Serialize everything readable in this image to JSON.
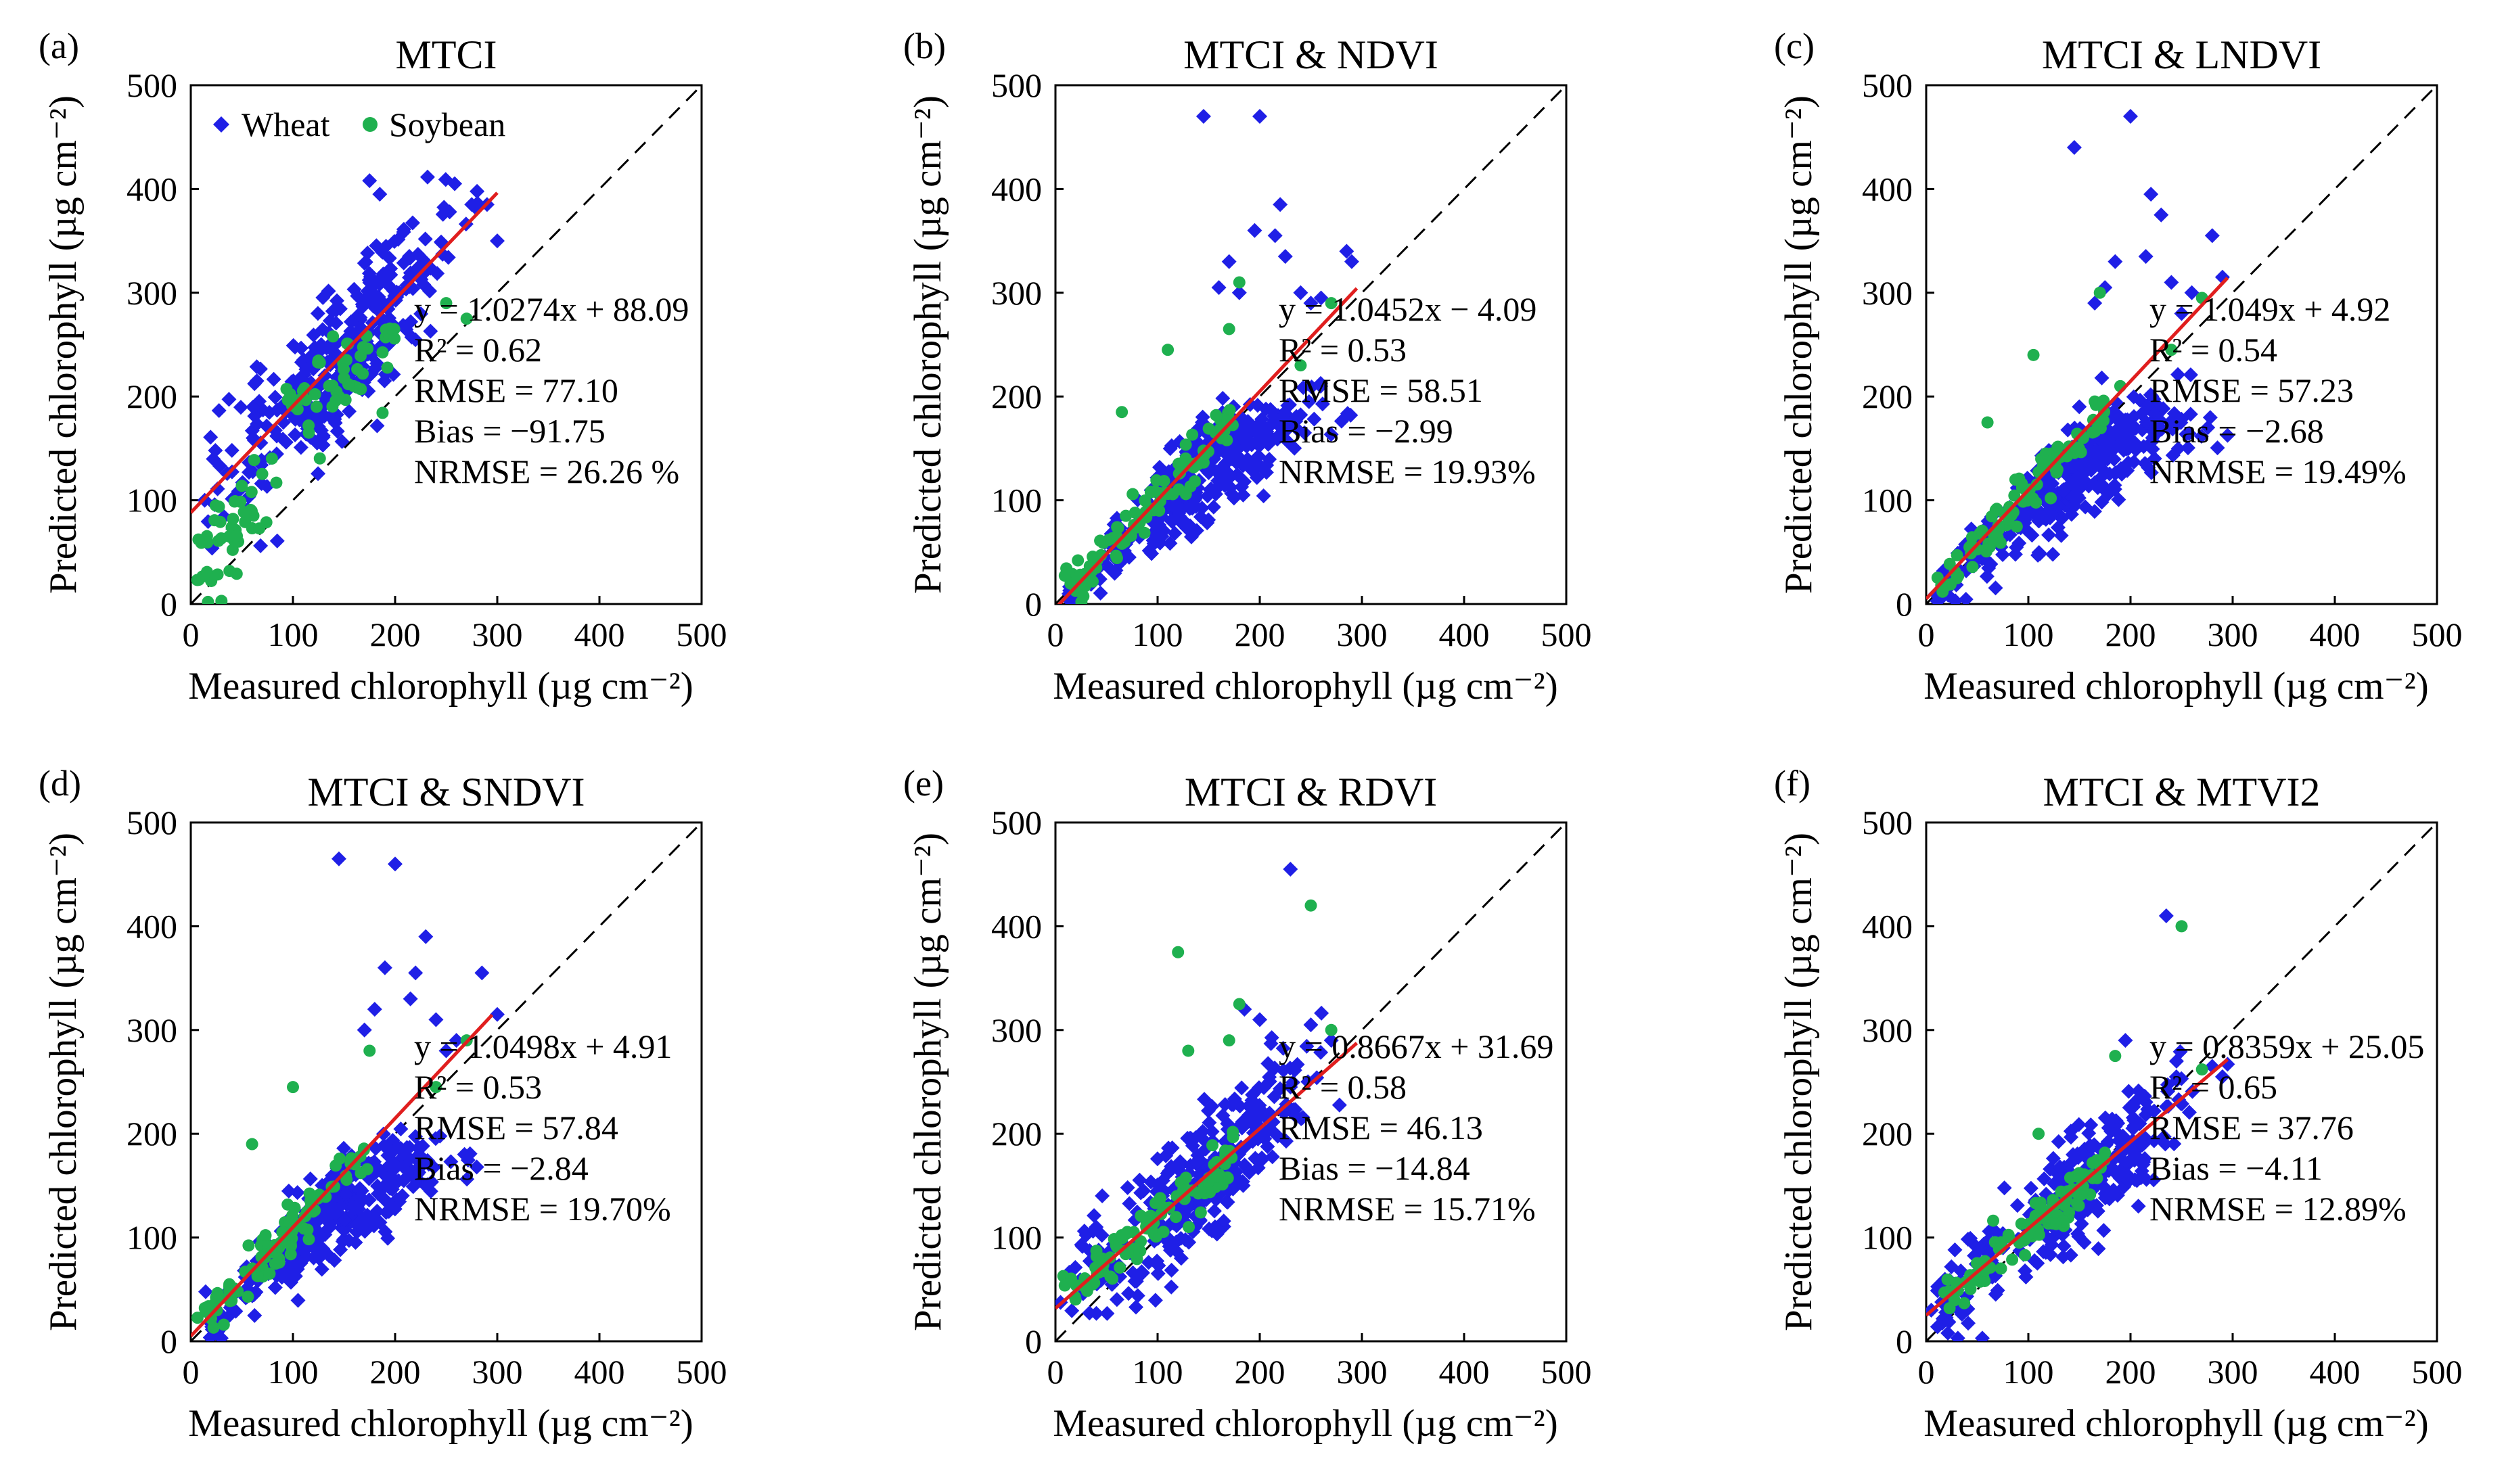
{
  "chart_data": [
    {
      "panel_label": "(a)",
      "title": "MTCI",
      "type": "scatter",
      "xlabel": "Measured chlorophyll (µg cm⁻²)",
      "ylabel": "Predicted chlorophyll (µg cm⁻²)",
      "xlim": [
        0,
        500
      ],
      "ylim": [
        0,
        500
      ],
      "xticks": [
        "0",
        "100",
        "200",
        "300",
        "400",
        "500"
      ],
      "yticks": [
        "0",
        "100",
        "200",
        "300",
        "400",
        "500"
      ],
      "legend": {
        "placement": "top-left",
        "entries": [
          "Wheat",
          "Soybean"
        ]
      },
      "fit": {
        "slope": 1.0274,
        "intercept": 88.09,
        "x_range": [
          0,
          300
        ]
      },
      "stats": [
        "y = 1.0274x + 88.09",
        "R² = 0.62",
        "RMSE = 77.10",
        "Bias = −91.75",
        "NRMSE = 26.26 %"
      ],
      "model": {
        "type": "linear",
        "slope": 1.0274,
        "intercept": 88.09,
        "sd": 35
      },
      "soy_model": {
        "type": "soy_a"
      },
      "outliers_wheat": [
        [
          175,
          408
        ],
        [
          185,
          395
        ],
        [
          290,
          385
        ],
        [
          300,
          350
        ],
        [
          275,
          385
        ]
      ],
      "outliers_soy": [
        [
          250,
          290
        ],
        [
          270,
          275
        ],
        [
          30,
          3
        ]
      ]
    },
    {
      "panel_label": "(b)",
      "title": "MTCI & NDVI",
      "type": "scatter",
      "xlabel": "Measured chlorophyll (µg cm⁻²)",
      "ylabel": "Predicted chlorophyll (µg cm⁻²)",
      "xlim": [
        0,
        500
      ],
      "ylim": [
        0,
        500
      ],
      "xticks": [
        "0",
        "100",
        "200",
        "300",
        "400",
        "500"
      ],
      "yticks": [
        "0",
        "100",
        "200",
        "300",
        "400",
        "500"
      ],
      "fit": {
        "slope": 1.0452,
        "intercept": -4.09,
        "x_range": [
          0,
          295
        ]
      },
      "stats": [
        "y = 1.0452x − 4.09",
        "R² = 0.53",
        "RMSE = 58.51",
        "Bias = −2.99",
        "NRMSE = 19.93%"
      ],
      "model": {
        "type": "fan"
      },
      "soy_model": {
        "type": "soy_line"
      },
      "outliers_wheat": [
        [
          145,
          470
        ],
        [
          200,
          470
        ],
        [
          220,
          385
        ],
        [
          215,
          355
        ],
        [
          195,
          360
        ],
        [
          225,
          335
        ],
        [
          285,
          340
        ],
        [
          290,
          330
        ],
        [
          170,
          330
        ],
        [
          160,
          305
        ],
        [
          180,
          300
        ],
        [
          240,
          300
        ],
        [
          260,
          295
        ],
        [
          250,
          290
        ]
      ],
      "outliers_soy": [
        [
          110,
          245
        ],
        [
          170,
          265
        ],
        [
          270,
          290
        ],
        [
          65,
          185
        ],
        [
          180,
          310
        ],
        [
          240,
          230
        ]
      ]
    },
    {
      "panel_label": "(c)",
      "title": "MTCI & LNDVI",
      "type": "scatter",
      "xlabel": "Measured chlorophyll (µg cm⁻²)",
      "ylabel": "Predicted chlorophyll (µg cm⁻²)",
      "xlim": [
        0,
        500
      ],
      "ylim": [
        0,
        500
      ],
      "xticks": [
        "0",
        "100",
        "200",
        "300",
        "400",
        "500"
      ],
      "yticks": [
        "0",
        "100",
        "200",
        "300",
        "400",
        "500"
      ],
      "fit": {
        "slope": 1.049,
        "intercept": 4.92,
        "x_range": [
          0,
          295
        ]
      },
      "stats": [
        "y = 1.049x + 4.92",
        "R² = 0.54",
        "RMSE = 57.23",
        "Bias = −2.68",
        "NRMSE = 19.49%"
      ],
      "model": {
        "type": "fan"
      },
      "soy_model": {
        "type": "soy_line"
      },
      "outliers_wheat": [
        [
          145,
          440
        ],
        [
          200,
          470
        ],
        [
          220,
          395
        ],
        [
          230,
          375
        ],
        [
          185,
          330
        ],
        [
          215,
          335
        ],
        [
          240,
          310
        ],
        [
          290,
          315
        ],
        [
          280,
          355
        ],
        [
          165,
          290
        ],
        [
          175,
          305
        ],
        [
          260,
          300
        ],
        [
          250,
          280
        ]
      ],
      "outliers_soy": [
        [
          105,
          240
        ],
        [
          170,
          300
        ],
        [
          270,
          295
        ],
        [
          60,
          175
        ],
        [
          240,
          245
        ],
        [
          190,
          210
        ]
      ]
    },
    {
      "panel_label": "(d)",
      "title": "MTCI & SNDVI",
      "type": "scatter",
      "xlabel": "Measured chlorophyll (µg cm⁻²)",
      "ylabel": "Predicted chlorophyll (µg cm⁻²)",
      "xlim": [
        0,
        500
      ],
      "ylim": [
        0,
        500
      ],
      "xticks": [
        "0",
        "100",
        "200",
        "300",
        "400",
        "500"
      ],
      "yticks": [
        "0",
        "100",
        "200",
        "300",
        "400",
        "500"
      ],
      "fit": {
        "slope": 1.0498,
        "intercept": 4.91,
        "x_range": [
          0,
          295
        ]
      },
      "stats": [
        "y = 1.0498x + 4.91",
        "R² = 0.53",
        "RMSE = 57.84",
        "Bias = −2.84",
        "NRMSE = 19.70%"
      ],
      "model": {
        "type": "fan"
      },
      "soy_model": {
        "type": "soy_line"
      },
      "outliers_wheat": [
        [
          145,
          465
        ],
        [
          200,
          460
        ],
        [
          230,
          390
        ],
        [
          220,
          355
        ],
        [
          190,
          360
        ],
        [
          215,
          330
        ],
        [
          285,
          355
        ],
        [
          300,
          315
        ],
        [
          170,
          300
        ],
        [
          180,
          320
        ],
        [
          240,
          310
        ],
        [
          260,
          290
        ],
        [
          250,
          280
        ]
      ],
      "outliers_soy": [
        [
          100,
          245
        ],
        [
          60,
          190
        ],
        [
          270,
          290
        ],
        [
          175,
          280
        ],
        [
          240,
          245
        ]
      ]
    },
    {
      "panel_label": "(e)",
      "title": "MTCI & RDVI",
      "type": "scatter",
      "xlabel": "Measured chlorophyll (µg cm⁻²)",
      "ylabel": "Predicted chlorophyll (µg cm⁻²)",
      "xlim": [
        0,
        500
      ],
      "ylim": [
        0,
        500
      ],
      "xticks": [
        "0",
        "100",
        "200",
        "300",
        "400",
        "500"
      ],
      "yticks": [
        "0",
        "100",
        "200",
        "300",
        "400",
        "500"
      ],
      "fit": {
        "slope": 0.8667,
        "intercept": 31.69,
        "x_range": [
          0,
          295
        ]
      },
      "stats": [
        "y = 0.8667x + 31.69",
        "R² = 0.58",
        "RMSE = 46.13",
        "Bias = −14.84",
        "NRMSE = 15.71%"
      ],
      "model": {
        "type": "linear",
        "slope": 0.8667,
        "intercept": 31.69,
        "sd": 30
      },
      "soy_model": {
        "type": "soy_line"
      },
      "outliers_wheat": [
        [
          230,
          455
        ],
        [
          200,
          310
        ],
        [
          185,
          320
        ],
        [
          250,
          305
        ],
        [
          270,
          290
        ]
      ],
      "outliers_soy": [
        [
          250,
          420
        ],
        [
          120,
          375
        ],
        [
          180,
          325
        ],
        [
          130,
          280
        ],
        [
          270,
          300
        ],
        [
          170,
          290
        ]
      ]
    },
    {
      "panel_label": "(f)",
      "title": "MTCI & MTVI2",
      "type": "scatter",
      "xlabel": "Measured chlorophyll (µg cm⁻²)",
      "ylabel": "Predicted chlorophyll (µg cm⁻²)",
      "xlim": [
        0,
        500
      ],
      "ylim": [
        0,
        500
      ],
      "xticks": [
        "0",
        "100",
        "200",
        "300",
        "400",
        "500"
      ],
      "yticks": [
        "0",
        "100",
        "200",
        "300",
        "400",
        "500"
      ],
      "fit": {
        "slope": 0.8359,
        "intercept": 25.05,
        "x_range": [
          0,
          295
        ]
      },
      "stats": [
        "y = 0.8359x + 25.05",
        "R² = 0.65",
        "RMSE = 37.76",
        "Bias = −4.11",
        "NRMSE = 12.89%"
      ],
      "model": {
        "type": "linear",
        "slope": 0.8359,
        "intercept": 25.05,
        "sd": 26
      },
      "soy_model": {
        "type": "soy_line"
      },
      "outliers_wheat": [
        [
          235,
          410
        ],
        [
          195,
          290
        ],
        [
          280,
          265
        ],
        [
          290,
          255
        ],
        [
          245,
          270
        ]
      ],
      "outliers_soy": [
        [
          250,
          400
        ],
        [
          185,
          275
        ],
        [
          270,
          262
        ],
        [
          110,
          200
        ]
      ]
    }
  ],
  "colors": {
    "wheat": "#1f1fe6",
    "soybean": "#1fb04f",
    "fit_line": "#e01e1e",
    "identity_line": "#000000"
  }
}
